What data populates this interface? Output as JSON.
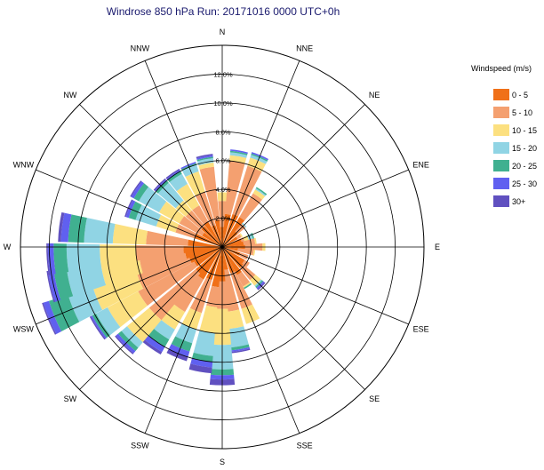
{
  "title": "Windrose 850 hPa Run: 20171016 0000 UTC+0h",
  "chart_data": {
    "type": "windrose",
    "title": "Windrose 850 hPa Run: 20171016 0000 UTC+0h",
    "directions": [
      "N",
      "NNE",
      "NE",
      "ENE",
      "E",
      "ESE",
      "SE",
      "SSE",
      "S",
      "SSW",
      "SW",
      "WSW",
      "W",
      "WNW",
      "NW",
      "NNW"
    ],
    "direction_angles_deg": [
      0,
      22.5,
      45,
      67.5,
      90,
      112.5,
      135,
      157.5,
      180,
      202.5,
      225,
      247.5,
      270,
      292.5,
      315,
      337.5
    ],
    "radial_ticks": [
      "2.0%",
      "4.0%",
      "6.0%",
      "8.0%",
      "10.0%",
      "12.0%"
    ],
    "radial_values": [
      2,
      4,
      6,
      8,
      10,
      12
    ],
    "rmax": 14,
    "legend_title": "Windspeed (m/s)",
    "speed_bins": [
      {
        "label": "0 - 5",
        "color": "#f07018"
      },
      {
        "label": "5 - 10",
        "color": "#f4a070"
      },
      {
        "label": "10 - 15",
        "color": "#fce080"
      },
      {
        "label": "15 - 20",
        "color": "#90d4e4"
      },
      {
        "label": "20 - 25",
        "color": "#40b090"
      },
      {
        "label": "25 - 30",
        "color": "#6060f0"
      },
      {
        "label": "30+",
        "color": "#6050c0"
      }
    ],
    "sectors": [
      {
        "dir": "N",
        "angle": 0,
        "cum": [
          1.4,
          3.2,
          3.8,
          3.8,
          3.8,
          3.8,
          3.8
        ]
      },
      {
        "dir": "N",
        "angle": 10,
        "cum": [
          2.3,
          6.0,
          6.4,
          6.6,
          6.7,
          6.8,
          6.8
        ]
      },
      {
        "dir": "NNE",
        "angle": 22.5,
        "cum": [
          2.4,
          5.9,
          6.5,
          6.7,
          6.8,
          6.9,
          6.9
        ]
      },
      {
        "dir": "NNE",
        "angle": 35,
        "cum": [
          2.4,
          4.3,
          4.6,
          4.7,
          4.8,
          4.8,
          4.8
        ]
      },
      {
        "dir": "NE",
        "angle": 45,
        "cum": [
          1.4,
          2.1,
          2.1,
          2.2,
          2.2,
          2.2,
          2.2
        ]
      },
      {
        "dir": "NE",
        "angle": 58,
        "cum": [
          1.2,
          1.5,
          1.6,
          1.6,
          1.6,
          1.6,
          1.6
        ]
      },
      {
        "dir": "ENE",
        "angle": 70,
        "cum": [
          1.4,
          1.6,
          1.9,
          2.2,
          2.3,
          2.3,
          2.3
        ]
      },
      {
        "dir": "E",
        "angle": 80,
        "cum": [
          1.5,
          2.3,
          2.4,
          2.4,
          2.4,
          2.4,
          2.4
        ]
      },
      {
        "dir": "E",
        "angle": 90,
        "cum": [
          1.6,
          2.8,
          3.0,
          3.0,
          3.0,
          3.0,
          3.0
        ]
      },
      {
        "dir": "E",
        "angle": 100,
        "cum": [
          1.1,
          2.2,
          2.3,
          2.3,
          2.3,
          2.3,
          2.3
        ]
      },
      {
        "dir": "ESE",
        "angle": 112.5,
        "cum": [
          1.3,
          1.9,
          1.9,
          1.9,
          1.9,
          1.9,
          1.9
        ]
      },
      {
        "dir": "ESE",
        "angle": 125,
        "cum": [
          1.8,
          2.2,
          2.2,
          2.2,
          2.2,
          2.2,
          2.2
        ]
      },
      {
        "dir": "SE",
        "angle": 135,
        "cum": [
          1.9,
          3.0,
          3.5,
          3.6,
          3.7,
          3.8,
          3.9
        ]
      },
      {
        "dir": "SE",
        "angle": 147,
        "cum": [
          2.2,
          3.1,
          3.2,
          3.2,
          3.3,
          3.3,
          3.3
        ]
      },
      {
        "dir": "SSE",
        "angle": 157.5,
        "cum": [
          1.9,
          4.5,
          5.6,
          5.6,
          5.6,
          5.6,
          5.6
        ]
      },
      {
        "dir": "S",
        "angle": 170,
        "cum": [
          1.6,
          4.5,
          5.7,
          7.0,
          7.2,
          7.3,
          7.4
        ]
      },
      {
        "dir": "S",
        "angle": 180,
        "cum": [
          2.4,
          4.3,
          6.8,
          8.5,
          8.9,
          9.2,
          9.6
        ]
      },
      {
        "dir": "S",
        "angle": 190,
        "cum": [
          2.8,
          4.2,
          6.0,
          7.6,
          8.0,
          8.4,
          8.8
        ]
      },
      {
        "dir": "SSW",
        "angle": 202.5,
        "cum": [
          2.4,
          4.8,
          6.0,
          7.0,
          7.6,
          8.0,
          8.3
        ]
      },
      {
        "dir": "SSW",
        "angle": 215,
        "cum": [
          2.6,
          5.2,
          6.6,
          7.4,
          8.0,
          8.4,
          8.6
        ]
      },
      {
        "dir": "SW",
        "angle": 225,
        "cum": [
          2.4,
          6.6,
          8.6,
          9.1,
          9.4,
          9.6,
          9.7
        ]
      },
      {
        "dir": "SW",
        "angle": 237,
        "cum": [
          2.2,
          6.6,
          9.0,
          9.9,
          10.2,
          10.3,
          10.4
        ]
      },
      {
        "dir": "WSW",
        "angle": 247.5,
        "cum": [
          2.4,
          6.2,
          9.4,
          11.2,
          12.6,
          13.0,
          13.1
        ]
      },
      {
        "dir": "WSW",
        "angle": 257,
        "cum": [
          2.6,
          5.8,
          8.5,
          10.9,
          11.8,
          12.2,
          12.3
        ]
      },
      {
        "dir": "W",
        "angle": 266,
        "cum": [
          2.7,
          6.0,
          8.5,
          10.8,
          11.7,
          12.1,
          12.2
        ]
      },
      {
        "dir": "W",
        "angle": 277,
        "cum": [
          2.4,
          5.3,
          7.6,
          9.6,
          10.7,
          11.2,
          11.4
        ]
      },
      {
        "dir": "WNW",
        "angle": 292.5,
        "cum": [
          2.0,
          3.4,
          4.8,
          6.3,
          6.8,
          7.0,
          7.1
        ]
      },
      {
        "dir": "WNW",
        "angle": 304,
        "cum": [
          1.6,
          3.4,
          5.0,
          6.6,
          7.0,
          7.2,
          7.3
        ]
      },
      {
        "dir": "NW",
        "angle": 315,
        "cum": [
          1.9,
          3.3,
          4.2,
          5.8,
          6.0,
          6.1,
          6.2
        ]
      },
      {
        "dir": "NW",
        "angle": 326,
        "cum": [
          2.0,
          3.3,
          5.0,
          5.8,
          6.0,
          6.1,
          6.2
        ]
      },
      {
        "dir": "NNW",
        "angle": 337.5,
        "cum": [
          1.6,
          4.0,
          5.5,
          6.0,
          6.1,
          6.2,
          6.2
        ]
      },
      {
        "dir": "NNW",
        "angle": 349,
        "cum": [
          1.9,
          5.6,
          5.9,
          6.2,
          6.3,
          6.4,
          6.5
        ]
      }
    ]
  }
}
